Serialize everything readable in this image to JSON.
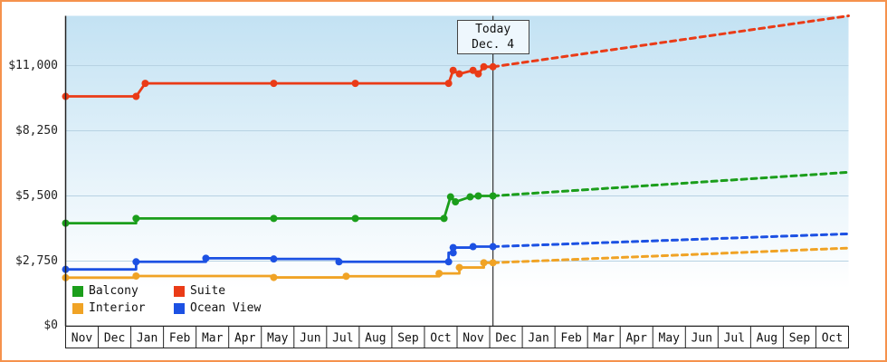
{
  "colors": {
    "frame_border": "#f5924d",
    "plot_bg_top": "#c3e2f3",
    "plot_bg_bottom": "#ffffff",
    "grid": "#b7d2e3",
    "axis": "#222222",
    "today_line": "#333333",
    "today_box_bg": "#eef7fd",
    "today_box_border": "#444444",
    "label_text": "#111111"
  },
  "chart_data": {
    "type": "line",
    "title": "",
    "grid": true,
    "legend_position": "bottom-left",
    "xlim": [
      0,
      24
    ],
    "ylim": [
      0,
      11000
    ],
    "x_axis": {
      "months": [
        "Nov",
        "Dec",
        "Jan",
        "Feb",
        "Mar",
        "Apr",
        "May",
        "Jun",
        "Jul",
        "Aug",
        "Sep",
        "Oct",
        "Nov",
        "Dec",
        "Jan",
        "Feb",
        "Mar",
        "Apr",
        "May",
        "Jun",
        "Jul",
        "Aug",
        "Sep",
        "Oct"
      ]
    },
    "y_axis": {
      "ticks": [
        {
          "label": "$11,000",
          "value": 11000
        },
        {
          "label": "$8,250",
          "value": 8250
        },
        {
          "label": "$5,500",
          "value": 5500
        },
        {
          "label": "$2,750",
          "value": 2750
        },
        {
          "label": "$0",
          "value": 0
        }
      ]
    },
    "today": {
      "line1": "Today",
      "line2": "Dec. 4",
      "x": 13.1
    },
    "series": [
      {
        "name": "Interior",
        "color": "#f0a325",
        "history": [
          [
            0,
            2050
          ],
          [
            2.16,
            2050
          ],
          [
            2.16,
            2120
          ],
          [
            6.38,
            2120
          ],
          [
            6.38,
            2060
          ],
          [
            8.6,
            2060
          ],
          [
            8.6,
            2110
          ],
          [
            11.45,
            2110
          ],
          [
            11.45,
            2230
          ],
          [
            12.07,
            2230
          ],
          [
            12.07,
            2480
          ],
          [
            12.82,
            2480
          ],
          [
            12.82,
            2680
          ],
          [
            13.1,
            2680
          ]
        ],
        "dots": [
          [
            0,
            2050
          ],
          [
            2.16,
            2120
          ],
          [
            6.38,
            2060
          ],
          [
            8.6,
            2110
          ],
          [
            11.45,
            2230
          ],
          [
            12.07,
            2480
          ],
          [
            12.82,
            2680
          ],
          [
            13.1,
            2680
          ]
        ],
        "forecast": [
          [
            13.1,
            2680
          ],
          [
            24,
            3300
          ]
        ]
      },
      {
        "name": "Ocean View",
        "color": "#1c51e3",
        "history": [
          [
            0,
            2400
          ],
          [
            2.16,
            2400
          ],
          [
            2.16,
            2720
          ],
          [
            4.3,
            2720
          ],
          [
            4.3,
            2870
          ],
          [
            6.38,
            2870
          ],
          [
            6.38,
            2840
          ],
          [
            8.38,
            2840
          ],
          [
            8.38,
            2720
          ],
          [
            11.74,
            2720
          ],
          [
            11.74,
            3100
          ],
          [
            11.88,
            3100
          ],
          [
            11.88,
            3320
          ],
          [
            12.49,
            3320
          ],
          [
            12.49,
            3360
          ],
          [
            13.1,
            3360
          ]
        ],
        "dots": [
          [
            0,
            2400
          ],
          [
            2.16,
            2720
          ],
          [
            4.3,
            2870
          ],
          [
            6.38,
            2840
          ],
          [
            8.38,
            2720
          ],
          [
            11.74,
            2720
          ],
          [
            11.88,
            3100
          ],
          [
            11.88,
            3320
          ],
          [
            12.49,
            3360
          ],
          [
            13.1,
            3360
          ]
        ],
        "forecast": [
          [
            13.1,
            3360
          ],
          [
            24,
            3900
          ]
        ]
      },
      {
        "name": "Balcony",
        "color": "#1b9e1b",
        "history": [
          [
            0,
            4350
          ],
          [
            2.16,
            4350
          ],
          [
            2.16,
            4550
          ],
          [
            11.6,
            4550
          ],
          [
            11.8,
            5460
          ],
          [
            11.95,
            5250
          ],
          [
            12.4,
            5460
          ],
          [
            12.65,
            5500
          ],
          [
            13.1,
            5500
          ]
        ],
        "dots": [
          [
            0,
            4350
          ],
          [
            2.16,
            4550
          ],
          [
            6.38,
            4550
          ],
          [
            8.88,
            4550
          ],
          [
            11.6,
            4550
          ],
          [
            11.8,
            5460
          ],
          [
            11.95,
            5250
          ],
          [
            12.4,
            5460
          ],
          [
            12.65,
            5500
          ],
          [
            13.1,
            5500
          ]
        ],
        "forecast": [
          [
            13.1,
            5500
          ],
          [
            24,
            6500
          ]
        ]
      },
      {
        "name": "Suite",
        "color": "#ea3b17",
        "history": [
          [
            0,
            9700
          ],
          [
            2.16,
            9700
          ],
          [
            2.44,
            10250
          ],
          [
            11.74,
            10250
          ],
          [
            11.88,
            10800
          ],
          [
            12.07,
            10650
          ],
          [
            12.49,
            10800
          ],
          [
            12.65,
            10650
          ],
          [
            12.82,
            10950
          ],
          [
            13.1,
            10950
          ]
        ],
        "dots": [
          [
            0,
            9700
          ],
          [
            2.16,
            9700
          ],
          [
            2.44,
            10250
          ],
          [
            6.38,
            10250
          ],
          [
            8.88,
            10250
          ],
          [
            11.74,
            10250
          ],
          [
            11.88,
            10800
          ],
          [
            12.07,
            10650
          ],
          [
            12.49,
            10800
          ],
          [
            12.65,
            10650
          ],
          [
            12.82,
            10950
          ],
          [
            13.1,
            10950
          ]
        ],
        "forecast": [
          [
            13.1,
            10950
          ],
          [
            24,
            13100
          ]
        ]
      }
    ],
    "legend": {
      "items": [
        {
          "label": "Balcony",
          "color": "#1b9e1b"
        },
        {
          "label": "Suite",
          "color": "#ea3b17"
        },
        {
          "label": "Interior",
          "color": "#f0a325"
        },
        {
          "label": "Ocean View",
          "color": "#1c51e3"
        }
      ]
    }
  }
}
